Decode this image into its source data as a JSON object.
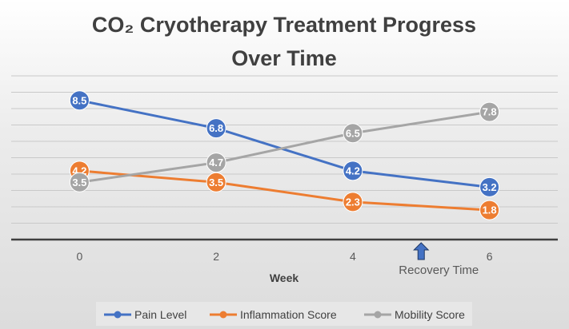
{
  "chart_data": {
    "type": "line",
    "title_line1": "CO₂ Cryotherapy Treatment Progress",
    "title_line2": "Over Time",
    "xlabel": "Week",
    "ylabel": "",
    "x": [
      0,
      2,
      4,
      6
    ],
    "xlim": [
      -1,
      7
    ],
    "ylim": [
      0,
      10
    ],
    "grid": true,
    "legend_position": "bottom",
    "series": [
      {
        "name": "Pain Level",
        "values": [
          8.5,
          6.8,
          4.2,
          3.2
        ],
        "labels": [
          "8.5",
          "6.8",
          "4.2",
          "3.2"
        ],
        "color": "#4472C4"
      },
      {
        "name": "Inflammation Score",
        "values": [
          4.2,
          3.5,
          2.3,
          1.8
        ],
        "labels": [
          "4.2",
          "3.5",
          "2.3",
          "1.8"
        ],
        "color": "#ED7D31"
      },
      {
        "name": "Mobility Score",
        "values": [
          3.5,
          4.7,
          6.5,
          7.8
        ],
        "labels": [
          "3.5",
          "4.7",
          "6.5",
          "7.8"
        ],
        "color": "#A5A5A5"
      }
    ],
    "annotations": [
      {
        "text": "Recovery Time",
        "x": 5,
        "arrow_color": "#4472C4",
        "arrow_icon": "up-arrow-icon"
      }
    ]
  }
}
